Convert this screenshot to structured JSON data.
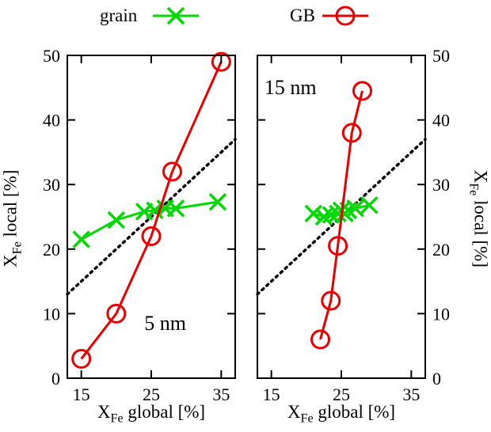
{
  "legend": {
    "items": [
      {
        "label": "grain",
        "marker": "x",
        "color": "#00d900"
      },
      {
        "label": "GB",
        "marker": "circle",
        "color": "#e60000"
      }
    ]
  },
  "axes": {
    "x_title": {
      "base": "X",
      "sub": "Fe",
      "rest": " global [%]"
    },
    "y_title": {
      "base": "X",
      "sub": "Fe",
      "rest": " local [%]"
    }
  },
  "chart_data": [
    {
      "type": "scatter",
      "panel_label": "5 nm",
      "label_anchor": {
        "x": 27,
        "y": 7.5,
        "align": "middle"
      },
      "xlim": [
        13,
        37
      ],
      "ylim": [
        0,
        50
      ],
      "xticks": [
        15,
        25,
        35
      ],
      "yticks": [
        0,
        10,
        20,
        30,
        40,
        50
      ],
      "tick_label_side": "left",
      "xlabel": "X_Fe global [%]",
      "ylabel": "X_Fe local [%]",
      "identity_line": true,
      "grid": false,
      "series": [
        {
          "name": "grain",
          "color": "#00d900",
          "marker": "x",
          "x": [
            15,
            20,
            24,
            25.5,
            27,
            28.5,
            34.5
          ],
          "y": [
            21.5,
            24.5,
            25.8,
            26,
            26.3,
            26.3,
            27.3
          ]
        },
        {
          "name": "GB",
          "color": "#e60000",
          "marker": "circle",
          "x": [
            15,
            20,
            25,
            28,
            35
          ],
          "y": [
            3,
            10,
            22,
            32,
            49
          ]
        }
      ]
    },
    {
      "type": "scatter",
      "panel_label": "15 nm",
      "label_anchor": {
        "x": 14,
        "y": 44,
        "align": "start"
      },
      "xlim": [
        13,
        37
      ],
      "ylim": [
        0,
        50
      ],
      "xticks": [
        15,
        25,
        35
      ],
      "yticks": [
        0,
        10,
        20,
        30,
        40,
        50
      ],
      "tick_label_side": "right",
      "xlabel": "X_Fe global [%]",
      "ylabel": "X_Fe local [%]",
      "identity_line": true,
      "grid": false,
      "series": [
        {
          "name": "grain",
          "color": "#00d900",
          "marker": "x",
          "x": [
            21,
            22.5,
            23.5,
            24.5,
            25,
            25.5,
            26,
            27,
            29
          ],
          "y": [
            25.5,
            25,
            25.3,
            25.5,
            26,
            25.5,
            26,
            26.3,
            26.8
          ]
        },
        {
          "name": "GB",
          "color": "#e60000",
          "marker": "circle",
          "x": [
            22,
            23.5,
            24.5,
            26.5,
            28
          ],
          "y": [
            6,
            12,
            20.5,
            38,
            44.5
          ]
        }
      ]
    }
  ]
}
